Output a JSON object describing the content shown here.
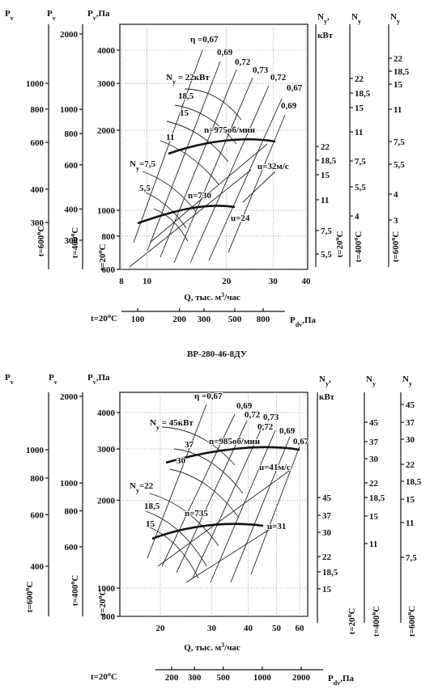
{
  "caption": "ВР-280-46-8ДУ",
  "panels": [
    {
      "left_axes": [
        {
          "header": {
            "main": "P",
            "sub": "v"
          },
          "caption": {
            "main": "t=600",
            "sup": "o",
            "rest": "C"
          },
          "ticks": [
            1000,
            800,
            600,
            400,
            300
          ]
        },
        {
          "header": {
            "main": "P",
            "sub": "v"
          },
          "caption": {
            "main": "t=400",
            "sup": "o",
            "rest": "C"
          },
          "ticks": [
            2000,
            1000,
            800,
            600,
            400,
            300
          ]
        },
        {
          "header": {
            "main": "P",
            "sub": "v",
            "rest": ",Па"
          },
          "caption": {
            "main": "t=20",
            "sup": "o",
            "rest": "C"
          },
          "ticks": [
            4000,
            3000,
            2000,
            1000,
            800,
            600
          ]
        }
      ],
      "right_axes": [
        {
          "header": {
            "main": "N",
            "sub": "y",
            "rest": ","
          },
          "unit": "кВт",
          "caption": {
            "main": "t=20",
            "sup": "o",
            "rest": "C"
          },
          "ticks": [
            "22",
            "18,5",
            "15",
            "11",
            "7,5",
            "5,5"
          ]
        },
        {
          "header": {
            "main": "N",
            "sub": "y"
          },
          "caption": {
            "main": "t=400",
            "sup": "o",
            "rest": "C"
          },
          "ticks": [
            "22",
            "18,5",
            "15",
            "11",
            "7,5",
            "5,5",
            "4"
          ]
        },
        {
          "header": {
            "main": "N",
            "sub": "y"
          },
          "caption": {
            "main": "t=600",
            "sup": "o",
            "rest": "C"
          },
          "ticks": [
            "22",
            "18,5",
            "15",
            "11",
            "7,5",
            "5,5",
            "4",
            "3"
          ]
        }
      ],
      "q_axis": {
        "label": {
          "main": "Q, тыс. м",
          "sup": "3",
          "rest": "/час"
        },
        "ticks": [
          8,
          10,
          20,
          30,
          40
        ]
      },
      "pdv_axis": {
        "prefix": {
          "main": "t=20",
          "sup": "o",
          "rest": "C"
        },
        "label": {
          "main": "P",
          "sub": "dv",
          "rest": ",Па"
        },
        "ticks": [
          100,
          200,
          300,
          500,
          800
        ]
      },
      "annotations": [
        "η =0,67",
        "0,69",
        "0,72",
        "0,73",
        "0,72",
        "0,67",
        "0,69",
        {
          "main": "N",
          "sub": "y",
          "rest": " = 22кВт"
        },
        "18,5",
        "15",
        "11",
        "n=975об/мин",
        "u=32м/с",
        {
          "main": "N",
          "sub": "y",
          "rest": "=7,5"
        },
        "5,5",
        "n=730",
        "u=24"
      ]
    },
    {
      "left_axes": [
        {
          "header": {
            "main": "P",
            "sub": "v"
          },
          "caption": {
            "main": "t=600",
            "sup": "o",
            "rest": "C"
          },
          "ticks": [
            1000,
            800,
            600,
            400
          ]
        },
        {
          "header": {
            "main": "P",
            "sub": "v"
          },
          "caption": {
            "main": "t=400",
            "sup": "o",
            "rest": "C"
          },
          "ticks": [
            2000,
            1000,
            800,
            600
          ]
        },
        {
          "header": {
            "main": "P",
            "sub": "v",
            "rest": ",Па"
          },
          "caption": {
            "main": "t=20",
            "sup": "o",
            "rest": "C"
          },
          "ticks": [
            4000,
            3000,
            2000,
            1000,
            800
          ]
        }
      ],
      "right_axes": [
        {
          "header": {
            "main": "N",
            "sub": "y",
            "rest": ","
          },
          "unit": "кВт",
          "caption": {
            "main": "t=20",
            "sup": "o",
            "rest": "C"
          },
          "ticks": [
            "45",
            "37",
            "30",
            "22",
            "18,5",
            "15"
          ]
        },
        {
          "header": {
            "main": "N",
            "sub": "y"
          },
          "caption": {
            "main": "t=400",
            "sup": "o",
            "rest": "C"
          },
          "ticks": [
            "45",
            "37",
            "30",
            "22",
            "18,5",
            "15",
            "11"
          ]
        },
        {
          "header": {
            "main": "N",
            "sub": "y"
          },
          "caption": {
            "main": "t=600",
            "sup": "o",
            "rest": "C"
          },
          "ticks": [
            "45",
            "37",
            "30",
            "22",
            "18,5",
            "15",
            "11",
            "7,5"
          ]
        }
      ],
      "q_axis": {
        "label": {
          "main": "Q, тыс. м",
          "sup": "3",
          "rest": "/час"
        },
        "ticks": [
          20,
          30,
          40,
          50,
          60
        ]
      },
      "pdv_axis": {
        "prefix": {
          "main": "t=20",
          "sup": "o",
          "rest": "C"
        },
        "label": {
          "main": "P",
          "sub": "dv",
          "rest": ",Па"
        },
        "ticks": [
          200,
          300,
          500,
          1000,
          2000
        ]
      },
      "annotations": [
        "η =0,67",
        "0,69",
        "0,72",
        "0,73",
        "0,72",
        "0,69",
        "0,67",
        {
          "main": "N",
          "sub": "y",
          "rest": " = 45кВт"
        },
        "37",
        "n=985об/мин",
        "30",
        "u=41м/с",
        {
          "main": "N",
          "sub": "y",
          "rest": "=22"
        },
        "18,5",
        "n=735",
        "15",
        "u=31"
      ]
    }
  ]
}
